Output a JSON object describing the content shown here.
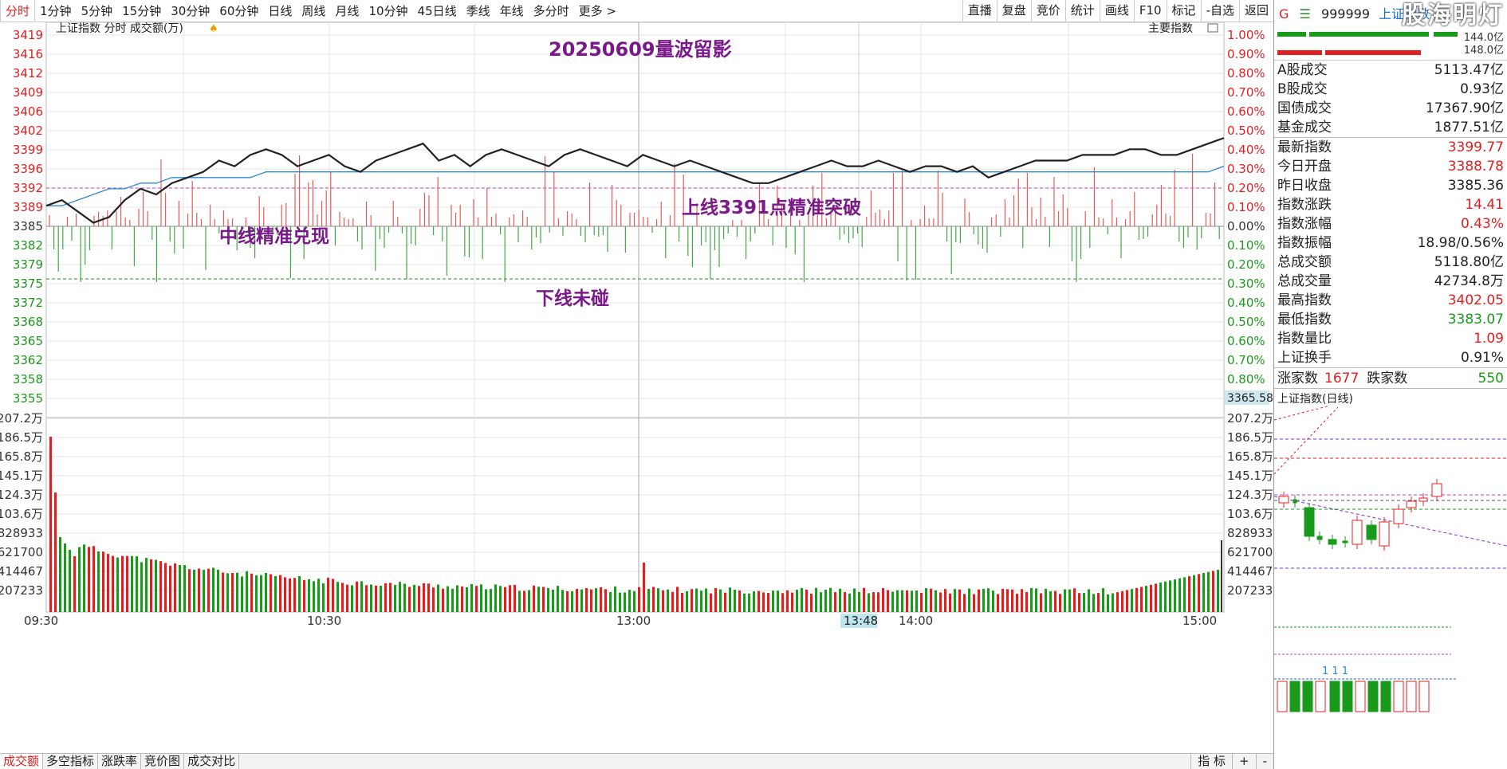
{
  "toolbar": {
    "periods": [
      "分时",
      "1分钟",
      "5分钟",
      "15分钟",
      "30分钟",
      "60分钟",
      "日线",
      "周线",
      "月线",
      "10分钟",
      "45日线",
      "季线",
      "年线",
      "多分时",
      "更多 >"
    ],
    "tools": [
      "直播",
      "复盘",
      "竞价",
      "统计",
      "画线",
      "F10",
      "标记",
      "-自选",
      "返回"
    ]
  },
  "chart": {
    "header_items": [
      "上证指数",
      "分时",
      "成交额(万)"
    ],
    "main_indicator": "主要指数",
    "annotation_title": "20250609量波留影",
    "annotation_up": "上线3391点精准突破",
    "annotation_mid": "中线精准兑现",
    "annotation_down": "下线未碰",
    "price_ticks_up": [
      "3419",
      "3416",
      "3412",
      "3409",
      "3406",
      "3402",
      "3399",
      "3396",
      "3392",
      "3389"
    ],
    "price_base": "3385",
    "price_ticks_down": [
      "3382",
      "3379",
      "3375",
      "3372",
      "3368",
      "3365",
      "3362",
      "3358",
      "3355"
    ],
    "pct_ticks_up": [
      "1.00%",
      "0.90%",
      "0.80%",
      "0.70%",
      "0.60%",
      "0.50%",
      "0.40%",
      "0.30%",
      "0.20%",
      "0.10%"
    ],
    "pct_base": "0.00%",
    "pct_ticks_down": [
      "0.10%",
      "0.20%",
      "0.30%",
      "0.40%",
      "0.50%",
      "0.60%",
      "0.70%",
      "0.80%",
      "0.90%"
    ],
    "cursor_price": "3365.58",
    "volume_ticks": [
      "207.2万",
      "186.5万",
      "165.8万",
      "145.1万",
      "124.3万",
      "103.6万",
      "828933",
      "621700",
      "414467",
      "207233"
    ],
    "time_labels": [
      "09:30",
      "10:30",
      "13:00",
      "14:00",
      "15:00"
    ],
    "cursor_time": "13:48",
    "colors": {
      "up": "#e02020",
      "down": "#1a9a1a",
      "price_line": "#222222",
      "avg_line": "#2a8ad0",
      "annotation": "#7a1a8a"
    }
  },
  "bottom": {
    "tabs": [
      "成交额",
      "多空指标",
      "涨跌率",
      "竞价图",
      "成交对比"
    ],
    "right": [
      "指 标",
      "+",
      "-"
    ]
  },
  "side": {
    "g": "G",
    "menu_icon": "menu-icon",
    "code": "999999",
    "name": "上证指数",
    "logo": "股海明灯",
    "bar_val1": "144.0亿",
    "bar_val2": "148.0亿",
    "turnover": [
      {
        "k": "A股成交",
        "v": "5113.47亿"
      },
      {
        "k": "B股成交",
        "v": "0.93亿"
      },
      {
        "k": "国债成交",
        "v": "17367.90亿"
      },
      {
        "k": "基金成交",
        "v": "1877.51亿"
      }
    ],
    "stats": [
      {
        "k": "最新指数",
        "v": "3399.77",
        "c": "red"
      },
      {
        "k": "今日开盘",
        "v": "3388.78",
        "c": "red"
      },
      {
        "k": "昨日收盘",
        "v": "3385.36",
        "c": ""
      },
      {
        "k": "指数涨跌",
        "v": "14.41",
        "c": "red"
      },
      {
        "k": "指数涨幅",
        "v": "0.43%",
        "c": "red"
      },
      {
        "k": "指数振幅",
        "v": "18.98/0.56%",
        "c": ""
      },
      {
        "k": "总成交额",
        "v": "5118.80亿",
        "c": ""
      },
      {
        "k": "总成交量",
        "v": "42734.8万",
        "c": ""
      },
      {
        "k": "最高指数",
        "v": "3402.05",
        "c": "red"
      },
      {
        "k": "最低指数",
        "v": "3383.07",
        "c": "green"
      },
      {
        "k": "指数量比",
        "v": "1.09",
        "c": "red"
      },
      {
        "k": "上证换手",
        "v": "0.91%",
        "c": ""
      }
    ],
    "up_label": "涨家数",
    "up_count": "1677",
    "down_label": "跌家数",
    "down_count": "550",
    "mini_title": "上证指数(日线)",
    "mini_marks": "1 1 1"
  },
  "chart_data": {
    "type": "line",
    "x_range": [
      "09:30",
      "15:00"
    ],
    "y_range": [
      3355,
      3419
    ],
    "base": 3385.36,
    "price_series": [
      3389,
      3390,
      3388,
      3386,
      3387,
      3390,
      3392,
      3391,
      3393,
      3394,
      3395,
      3397,
      3396,
      3398,
      3399,
      3398,
      3396,
      3397,
      3398,
      3396,
      3395,
      3397,
      3398,
      3399,
      3400,
      3397,
      3398,
      3396,
      3398,
      3399,
      3398,
      3397,
      3396,
      3398,
      3399,
      3398,
      3397,
      3396,
      3398,
      3397,
      3396,
      3397,
      3396,
      3395,
      3394,
      3393,
      3393,
      3394,
      3395,
      3396,
      3397,
      3396,
      3396,
      3397,
      3396,
      3395,
      3396,
      3396,
      3395,
      3396,
      3394,
      3395,
      3396,
      3397,
      3397,
      3397,
      3398,
      3398,
      3398,
      3399,
      3399,
      3398,
      3398,
      3399,
      3400,
      3401
    ],
    "avg_series": [
      3389,
      3389,
      3390,
      3391,
      3392,
      3392,
      3393,
      3393,
      3394,
      3394,
      3394,
      3394,
      3394,
      3394,
      3395,
      3395,
      3395,
      3395,
      3395,
      3395,
      3395,
      3395,
      3395,
      3395,
      3395,
      3395,
      3395,
      3395,
      3395,
      3395,
      3395,
      3395,
      3395,
      3395,
      3395,
      3395,
      3395,
      3395,
      3395,
      3395,
      3395,
      3395,
      3395,
      3395,
      3395,
      3395,
      3395,
      3395,
      3395,
      3395,
      3395,
      3395,
      3395,
      3395,
      3395,
      3395,
      3395,
      3395,
      3395,
      3395,
      3395,
      3395,
      3395,
      3395,
      3395,
      3395,
      3395,
      3395,
      3395,
      3395,
      3395,
      3395,
      3395,
      3395,
      3395,
      3396
    ],
    "ylabel": "成交额(万)"
  }
}
